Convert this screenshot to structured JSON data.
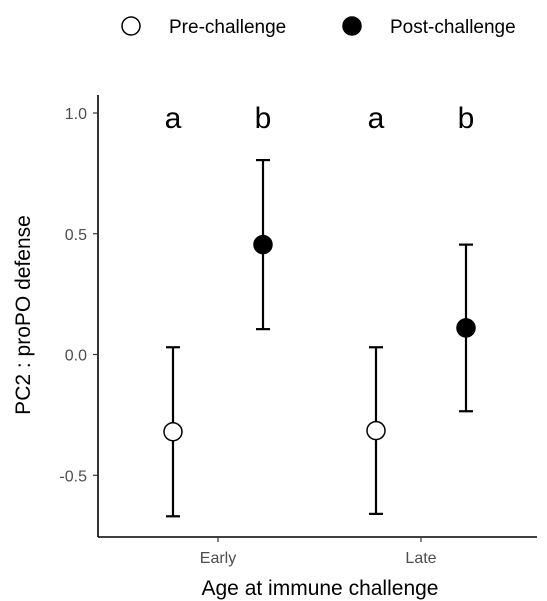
{
  "chart_data": {
    "type": "scatter",
    "xlabel": "Age at immune challenge",
    "ylabel": "PC2 : proPO defense",
    "categories": [
      "Early",
      "Late"
    ],
    "ylim": [
      -0.75,
      1.08
    ],
    "yticks": [
      {
        "value": -0.5,
        "label": "-0.5"
      },
      {
        "value": 0.0,
        "label": "0.0"
      },
      {
        "value": 0.5,
        "label": "0.5"
      },
      {
        "value": 1.0,
        "label": "1.0"
      }
    ],
    "grid": false,
    "legend_position": "top",
    "series": [
      {
        "name": "Pre-challenge",
        "marker": "open-circle",
        "color": "#000000",
        "points": [
          {
            "category": "Early",
            "y": -0.32,
            "lower": -0.67,
            "upper": 0.03,
            "letter": "a"
          },
          {
            "category": "Late",
            "y": -0.315,
            "lower": -0.66,
            "upper": 0.03,
            "letter": "a"
          }
        ]
      },
      {
        "name": "Post-challenge",
        "marker": "filled-circle",
        "color": "#000000",
        "points": [
          {
            "category": "Early",
            "y": 0.455,
            "lower": 0.105,
            "upper": 0.805,
            "letter": "b"
          },
          {
            "category": "Late",
            "y": 0.11,
            "lower": -0.235,
            "upper": 0.455,
            "letter": "b"
          }
        ]
      }
    ]
  }
}
